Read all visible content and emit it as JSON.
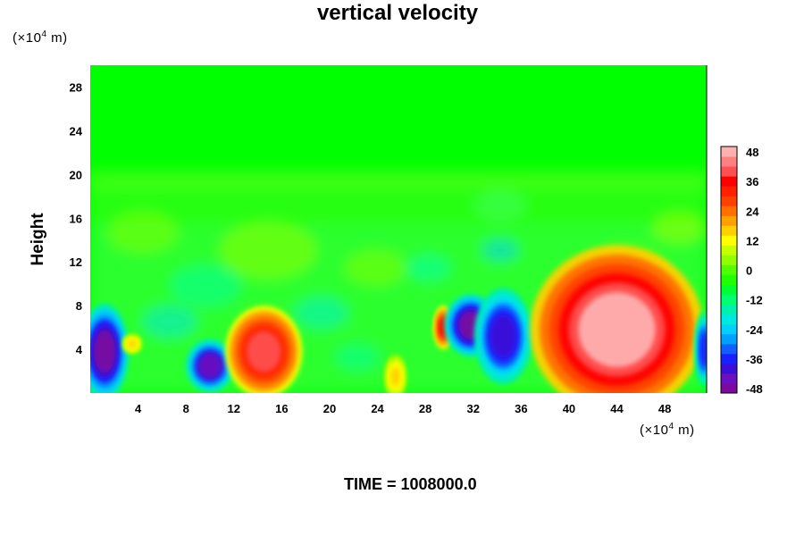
{
  "chart_data": {
    "type": "heatmap",
    "title": "vertical velocity",
    "ylabel": "Height",
    "xunit": "(×10⁴ m)",
    "yunit": "(×10⁴ m)",
    "xlim": [
      0,
      51.5
    ],
    "ylim": [
      0,
      30
    ],
    "xticks": [
      4,
      8,
      12,
      16,
      20,
      24,
      28,
      32,
      36,
      40,
      44,
      48
    ],
    "yticks": [
      4,
      8,
      12,
      16,
      20,
      24,
      28
    ],
    "colorbar": {
      "ticks": [
        48,
        36,
        24,
        12,
        0,
        -12,
        -24,
        -36,
        -48
      ],
      "range": [
        -48,
        48
      ],
      "colors": [
        "#7a0aa0",
        "#6a10c0",
        "#3a10d8",
        "#1a20ff",
        "#1060ff",
        "#00a0ff",
        "#00d0ff",
        "#00e8e0",
        "#00f0b0",
        "#00ff70",
        "#00ff30",
        "#20ff00",
        "#50ff00",
        "#90ff00",
        "#c8ff00",
        "#ffff00",
        "#ffd000",
        "#ffa000",
        "#ff7000",
        "#ff4000",
        "#ff2000",
        "#ff0000",
        "#ff5050",
        "#ff8080",
        "#ffb0b0"
      ]
    },
    "features": [
      {
        "x": 1.2,
        "y": 3.8,
        "value": -48
      },
      {
        "x": 3.5,
        "y": 4.5,
        "value": 14
      },
      {
        "x": 10.0,
        "y": 2.5,
        "value": -44
      },
      {
        "x": 14.5,
        "y": 3.8,
        "value": 38
      },
      {
        "x": 25.5,
        "y": 1.5,
        "value": 16
      },
      {
        "x": 29.5,
        "y": 6.0,
        "value": 34
      },
      {
        "x": 31.8,
        "y": 6.2,
        "value": -48
      },
      {
        "x": 34.5,
        "y": 5.2,
        "value": -42
      },
      {
        "x": 44.0,
        "y": 5.8,
        "value": 48
      },
      {
        "x": 51.3,
        "y": 4.0,
        "value": -36
      }
    ]
  },
  "unit_text": {
    "x": "(×10",
    "x_exp": "4",
    "x_tail": " m)",
    "y": "(×10",
    "y_exp": "4",
    "y_tail": " m)"
  },
  "footer": {
    "label": "TIME",
    "value": "1008000.0"
  }
}
